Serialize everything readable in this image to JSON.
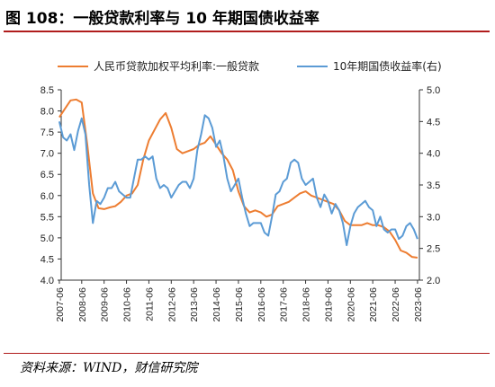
{
  "title": "图 108：一般贷款利率与 10 年期国债收益率",
  "source": "资料来源：WIND，财信研究院",
  "chart_data": {
    "type": "line",
    "legend_position": "top",
    "grid": false,
    "x_ticks": [
      "2007-06",
      "2008-06",
      "2009-06",
      "2010-06",
      "2011-06",
      "2012-06",
      "2013-06",
      "2014-06",
      "2015-06",
      "2016-06",
      "2017-06",
      "2018-06",
      "2019-06",
      "2020-06",
      "2021-06",
      "2022-06",
      "2023-06"
    ],
    "y_left": {
      "ticks": [
        "4.0",
        "4.5",
        "5.0",
        "5.5",
        "6.0",
        "6.5",
        "7.0",
        "7.5",
        "8.0",
        "8.5"
      ],
      "range": [
        4.0,
        8.5
      ]
    },
    "y_right": {
      "ticks": [
        "2.0",
        "2.5",
        "3.0",
        "3.5",
        "4.0",
        "4.5",
        "5.0"
      ],
      "range": [
        2.0,
        5.0
      ]
    },
    "series": [
      {
        "name": "人民币贷款加权平均利率:一般贷款",
        "axis": "left",
        "color": "#ed7d31",
        "points": [
          [
            "2007-06",
            7.85
          ],
          [
            "2007-09",
            8.05
          ],
          [
            "2007-12",
            8.25
          ],
          [
            "2008-03",
            8.27
          ],
          [
            "2008-06",
            8.2
          ],
          [
            "2008-09",
            7.2
          ],
          [
            "2008-12",
            6.05
          ],
          [
            "2009-03",
            5.7
          ],
          [
            "2009-06",
            5.68
          ],
          [
            "2009-09",
            5.72
          ],
          [
            "2009-12",
            5.75
          ],
          [
            "2010-03",
            5.85
          ],
          [
            "2010-06",
            6.0
          ],
          [
            "2010-09",
            6.05
          ],
          [
            "2010-12",
            6.25
          ],
          [
            "2011-03",
            6.85
          ],
          [
            "2011-06",
            7.3
          ],
          [
            "2011-09",
            7.55
          ],
          [
            "2011-12",
            7.8
          ],
          [
            "2012-03",
            7.95
          ],
          [
            "2012-06",
            7.6
          ],
          [
            "2012-09",
            7.1
          ],
          [
            "2012-12",
            7.0
          ],
          [
            "2013-03",
            7.05
          ],
          [
            "2013-06",
            7.1
          ],
          [
            "2013-09",
            7.2
          ],
          [
            "2013-12",
            7.25
          ],
          [
            "2014-03",
            7.4
          ],
          [
            "2014-06",
            7.2
          ],
          [
            "2014-09",
            7.0
          ],
          [
            "2014-12",
            6.85
          ],
          [
            "2015-03",
            6.6
          ],
          [
            "2015-06",
            6.1
          ],
          [
            "2015-09",
            5.75
          ],
          [
            "2015-12",
            5.6
          ],
          [
            "2016-03",
            5.65
          ],
          [
            "2016-06",
            5.6
          ],
          [
            "2016-09",
            5.5
          ],
          [
            "2016-12",
            5.55
          ],
          [
            "2017-03",
            5.75
          ],
          [
            "2017-06",
            5.8
          ],
          [
            "2017-09",
            5.85
          ],
          [
            "2017-12",
            5.95
          ],
          [
            "2018-03",
            6.05
          ],
          [
            "2018-06",
            6.1
          ],
          [
            "2018-09",
            6.0
          ],
          [
            "2018-12",
            5.95
          ],
          [
            "2019-03",
            5.9
          ],
          [
            "2019-06",
            5.85
          ],
          [
            "2019-09",
            5.8
          ],
          [
            "2019-12",
            5.65
          ],
          [
            "2020-03",
            5.4
          ],
          [
            "2020-06",
            5.3
          ],
          [
            "2020-09",
            5.3
          ],
          [
            "2020-12",
            5.3
          ],
          [
            "2021-03",
            5.35
          ],
          [
            "2021-06",
            5.3
          ],
          [
            "2021-09",
            5.3
          ],
          [
            "2021-12",
            5.25
          ],
          [
            "2022-03",
            5.15
          ],
          [
            "2022-06",
            4.95
          ],
          [
            "2022-09",
            4.7
          ],
          [
            "2022-12",
            4.65
          ],
          [
            "2023-03",
            4.55
          ],
          [
            "2023-06",
            4.53
          ]
        ]
      },
      {
        "name": "10年期国债收益率(右)",
        "axis": "right",
        "color": "#5b9bd5",
        "points": [
          [
            "2007-06",
            4.5
          ],
          [
            "2007-08",
            4.25
          ],
          [
            "2007-10",
            4.2
          ],
          [
            "2007-12",
            4.3
          ],
          [
            "2008-02",
            4.05
          ],
          [
            "2008-04",
            4.35
          ],
          [
            "2008-06",
            4.55
          ],
          [
            "2008-08",
            4.3
          ],
          [
            "2008-10",
            3.5
          ],
          [
            "2008-12",
            2.9
          ],
          [
            "2009-02",
            3.25
          ],
          [
            "2009-04",
            3.2
          ],
          [
            "2009-06",
            3.3
          ],
          [
            "2009-08",
            3.45
          ],
          [
            "2009-10",
            3.45
          ],
          [
            "2009-12",
            3.55
          ],
          [
            "2010-02",
            3.4
          ],
          [
            "2010-04",
            3.35
          ],
          [
            "2010-06",
            3.3
          ],
          [
            "2010-08",
            3.3
          ],
          [
            "2010-10",
            3.6
          ],
          [
            "2010-12",
            3.9
          ],
          [
            "2011-02",
            3.9
          ],
          [
            "2011-04",
            3.95
          ],
          [
            "2011-06",
            3.9
          ],
          [
            "2011-08",
            3.95
          ],
          [
            "2011-10",
            3.6
          ],
          [
            "2011-12",
            3.45
          ],
          [
            "2012-02",
            3.5
          ],
          [
            "2012-04",
            3.45
          ],
          [
            "2012-06",
            3.3
          ],
          [
            "2012-08",
            3.4
          ],
          [
            "2012-10",
            3.5
          ],
          [
            "2012-12",
            3.55
          ],
          [
            "2013-02",
            3.55
          ],
          [
            "2013-04",
            3.45
          ],
          [
            "2013-06",
            3.6
          ],
          [
            "2013-08",
            4.05
          ],
          [
            "2013-10",
            4.3
          ],
          [
            "2013-12",
            4.6
          ],
          [
            "2014-02",
            4.55
          ],
          [
            "2014-04",
            4.4
          ],
          [
            "2014-06",
            4.1
          ],
          [
            "2014-08",
            4.2
          ],
          [
            "2014-10",
            3.95
          ],
          [
            "2014-12",
            3.6
          ],
          [
            "2015-02",
            3.4
          ],
          [
            "2015-04",
            3.5
          ],
          [
            "2015-06",
            3.6
          ],
          [
            "2015-08",
            3.3
          ],
          [
            "2015-10",
            3.05
          ],
          [
            "2015-12",
            2.85
          ],
          [
            "2016-02",
            2.9
          ],
          [
            "2016-04",
            2.9
          ],
          [
            "2016-06",
            2.9
          ],
          [
            "2016-08",
            2.75
          ],
          [
            "2016-10",
            2.7
          ],
          [
            "2016-12",
            3.0
          ],
          [
            "2017-02",
            3.35
          ],
          [
            "2017-04",
            3.4
          ],
          [
            "2017-06",
            3.55
          ],
          [
            "2017-08",
            3.6
          ],
          [
            "2017-10",
            3.85
          ],
          [
            "2017-12",
            3.9
          ],
          [
            "2018-02",
            3.85
          ],
          [
            "2018-04",
            3.6
          ],
          [
            "2018-06",
            3.5
          ],
          [
            "2018-08",
            3.55
          ],
          [
            "2018-10",
            3.6
          ],
          [
            "2018-12",
            3.3
          ],
          [
            "2019-02",
            3.15
          ],
          [
            "2019-04",
            3.35
          ],
          [
            "2019-06",
            3.25
          ],
          [
            "2019-08",
            3.05
          ],
          [
            "2019-10",
            3.2
          ],
          [
            "2019-12",
            3.1
          ],
          [
            "2020-02",
            2.9
          ],
          [
            "2020-04",
            2.55
          ],
          [
            "2020-06",
            2.85
          ],
          [
            "2020-08",
            3.05
          ],
          [
            "2020-10",
            3.15
          ],
          [
            "2020-12",
            3.2
          ],
          [
            "2021-02",
            3.25
          ],
          [
            "2021-04",
            3.15
          ],
          [
            "2021-06",
            3.1
          ],
          [
            "2021-08",
            2.85
          ],
          [
            "2021-10",
            3.0
          ],
          [
            "2021-12",
            2.8
          ],
          [
            "2022-02",
            2.75
          ],
          [
            "2022-04",
            2.8
          ],
          [
            "2022-06",
            2.8
          ],
          [
            "2022-08",
            2.65
          ],
          [
            "2022-10",
            2.7
          ],
          [
            "2022-12",
            2.85
          ],
          [
            "2023-02",
            2.9
          ],
          [
            "2023-04",
            2.8
          ],
          [
            "2023-06",
            2.65
          ]
        ]
      }
    ]
  }
}
